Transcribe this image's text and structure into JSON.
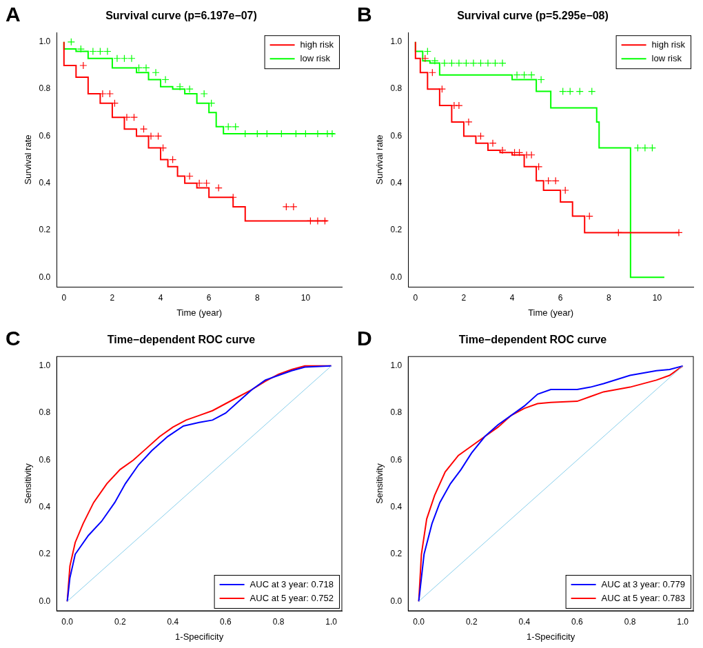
{
  "chart_data": [
    {
      "panel": "A",
      "type": "line",
      "title": "Survival curve (p=6.197e−07)",
      "x_label": "Time (year)",
      "y_label": "Survival rate",
      "xlim": [
        -0.3,
        11.5
      ],
      "xticks": [
        0,
        2,
        4,
        6,
        8,
        10
      ],
      "ylim": [
        -0.04,
        1.04
      ],
      "yticks": [
        {
          "value": 0,
          "label": "0.0"
        },
        {
          "value": 0.2,
          "label": "0.2"
        },
        {
          "value": 0.4,
          "label": "0.4"
        },
        {
          "value": 0.6,
          "label": "0.6"
        },
        {
          "value": 0.8,
          "label": "0.8"
        },
        {
          "value": 1,
          "label": "1.0"
        }
      ],
      "grid": false,
      "legend": "top right",
      "series": [
        {
          "name": "high risk",
          "color": "#ff0000",
          "line_style": "step",
          "marker": "cross",
          "x": [
            0,
            0.5,
            1,
            1.5,
            2,
            2.5,
            3,
            3.5,
            4,
            4.3,
            4.7,
            5,
            5.5,
            6,
            7,
            7.5,
            9.9,
            10.9
          ],
          "values": [
            1,
            0.9,
            0.85,
            0.78,
            0.74,
            0.68,
            0.63,
            0.6,
            0.55,
            0.5,
            0.47,
            0.43,
            0.4,
            0.38,
            0.34,
            0.3,
            0.24,
            0.24
          ],
          "censor_x": [
            0.8,
            1.6,
            1.9,
            2.1,
            2.6,
            2.9,
            3.3,
            3.6,
            3.9,
            4.1,
            4.5,
            5.2,
            5.6,
            5.9,
            6.4,
            7.0,
            9.2,
            9.5,
            10.2,
            10.5,
            10.8
          ]
        },
        {
          "name": "low risk",
          "color": "#00ff00",
          "line_style": "step",
          "marker": "cross",
          "x": [
            0,
            0.5,
            1,
            2,
            3,
            3.5,
            4,
            4.5,
            5,
            5.5,
            6,
            6.3,
            6.6,
            7.3,
            11.2
          ],
          "values": [
            1,
            0.97,
            0.96,
            0.93,
            0.89,
            0.87,
            0.84,
            0.81,
            0.8,
            0.78,
            0.74,
            0.7,
            0.64,
            0.61,
            0.61
          ],
          "censor_x": [
            0.3,
            0.7,
            1.2,
            1.5,
            1.8,
            2.2,
            2.5,
            2.8,
            3.1,
            3.4,
            3.8,
            4.2,
            4.8,
            5.2,
            5.8,
            6.1,
            6.8,
            7.1,
            7.5,
            8.0,
            8.4,
            9.0,
            9.6,
            10.0,
            10.5,
            10.9,
            11.1
          ]
        }
      ]
    },
    {
      "panel": "B",
      "type": "line",
      "title": "Survival curve (p=5.295e−08)",
      "x_label": "Time (year)",
      "y_label": "Survival rate",
      "xlim": [
        -0.3,
        11.5
      ],
      "xticks": [
        0,
        2,
        4,
        6,
        8,
        10
      ],
      "ylim": [
        -0.04,
        1.04
      ],
      "yticks": [
        {
          "value": 0,
          "label": "0.0"
        },
        {
          "value": 0.2,
          "label": "0.2"
        },
        {
          "value": 0.4,
          "label": "0.4"
        },
        {
          "value": 0.6,
          "label": "0.6"
        },
        {
          "value": 0.8,
          "label": "0.8"
        },
        {
          "value": 1,
          "label": "1.0"
        }
      ],
      "grid": false,
      "legend": "top right",
      "series": [
        {
          "name": "high risk",
          "color": "#ff0000",
          "line_style": "step",
          "marker": "cross",
          "x": [
            0,
            0.2,
            0.5,
            1,
            1.5,
            2,
            2.5,
            3,
            3.5,
            4,
            4.5,
            5,
            5.3,
            6,
            6.5,
            7,
            7.3,
            10.9
          ],
          "values": [
            1,
            0.93,
            0.87,
            0.8,
            0.73,
            0.66,
            0.6,
            0.57,
            0.54,
            0.53,
            0.52,
            0.47,
            0.41,
            0.37,
            0.32,
            0.26,
            0.19,
            0.19
          ],
          "censor_x": [
            0.4,
            0.7,
            1.1,
            1.6,
            1.8,
            2.2,
            2.7,
            3.2,
            3.6,
            4.1,
            4.3,
            4.6,
            4.8,
            5.1,
            5.5,
            5.8,
            6.2,
            7.2,
            8.4,
            10.9
          ]
        },
        {
          "name": "low risk",
          "color": "#00ff00",
          "line_style": "step",
          "marker": "cross",
          "x": [
            0,
            0.3,
            0.6,
            1,
            4,
            5,
            5.6,
            7.5,
            7.6,
            8.9,
            10.3
          ],
          "values": [
            1,
            0.96,
            0.92,
            0.91,
            0.86,
            0.84,
            0.79,
            0.72,
            0.66,
            0.55,
            0
          ],
          "censor_x": [
            0.5,
            0.8,
            1.2,
            1.5,
            1.8,
            2.1,
            2.4,
            2.7,
            3.0,
            3.3,
            3.6,
            4.2,
            4.5,
            4.8,
            5.2,
            6.1,
            6.4,
            6.8,
            7.3,
            9.2,
            9.5,
            9.8
          ]
        }
      ]
    },
    {
      "panel": "C",
      "type": "line",
      "title": "Time−dependent ROC curve",
      "x_label": "1-Specificity",
      "y_label": "Sensitivity",
      "xlim": [
        -0.04,
        1.04
      ],
      "xticks": [
        {
          "value": 0,
          "label": "0.0"
        },
        {
          "value": 0.2,
          "label": "0.2"
        },
        {
          "value": 0.4,
          "label": "0.4"
        },
        {
          "value": 0.6,
          "label": "0.6"
        },
        {
          "value": 0.8,
          "label": "0.8"
        },
        {
          "value": 1,
          "label": "1.0"
        }
      ],
      "ylim": [
        -0.04,
        1.04
      ],
      "yticks": [
        {
          "value": 0,
          "label": "0.0"
        },
        {
          "value": 0.2,
          "label": "0.2"
        },
        {
          "value": 0.4,
          "label": "0.4"
        },
        {
          "value": 0.6,
          "label": "0.6"
        },
        {
          "value": 0.8,
          "label": "0.8"
        },
        {
          "value": 1,
          "label": "1.0"
        }
      ],
      "grid": false,
      "legend": "bottom right",
      "series": [
        {
          "color": "#87ceeb",
          "line_style": "solid",
          "x": [
            0,
            1
          ],
          "values": [
            0,
            1
          ]
        },
        {
          "name": "AUC at 3 year: 0.718",
          "color": "#0000ff",
          "line_style": "solid",
          "x": [
            0,
            0.01,
            0.03,
            0.08,
            0.13,
            0.18,
            0.22,
            0.27,
            0.32,
            0.38,
            0.44,
            0.5,
            0.55,
            0.6,
            0.65,
            0.7,
            0.75,
            0.8,
            0.85,
            0.9,
            1
          ],
          "values": [
            0,
            0.1,
            0.2,
            0.28,
            0.34,
            0.42,
            0.5,
            0.58,
            0.64,
            0.7,
            0.745,
            0.76,
            0.77,
            0.8,
            0.85,
            0.9,
            0.94,
            0.96,
            0.98,
            0.995,
            1
          ]
        },
        {
          "name": "AUC at 5 year: 0.752",
          "color": "#ff0000",
          "line_style": "solid",
          "x": [
            0,
            0.01,
            0.03,
            0.06,
            0.1,
            0.15,
            0.2,
            0.25,
            0.3,
            0.35,
            0.4,
            0.45,
            0.5,
            0.55,
            0.6,
            0.65,
            0.7,
            0.75,
            0.8,
            0.85,
            0.9,
            1
          ],
          "values": [
            0,
            0.15,
            0.25,
            0.33,
            0.42,
            0.5,
            0.56,
            0.6,
            0.65,
            0.7,
            0.74,
            0.77,
            0.79,
            0.81,
            0.84,
            0.87,
            0.9,
            0.935,
            0.965,
            0.985,
            1,
            1
          ]
        }
      ]
    },
    {
      "panel": "D",
      "type": "line",
      "title": "Time−dependent ROC curve",
      "x_label": "1-Specificity",
      "y_label": "Sensitivity",
      "xlim": [
        -0.04,
        1.04
      ],
      "xticks": [
        {
          "value": 0,
          "label": "0.0"
        },
        {
          "value": 0.2,
          "label": "0.2"
        },
        {
          "value": 0.4,
          "label": "0.4"
        },
        {
          "value": 0.6,
          "label": "0.6"
        },
        {
          "value": 0.8,
          "label": "0.8"
        },
        {
          "value": 1,
          "label": "1.0"
        }
      ],
      "ylim": [
        -0.04,
        1.04
      ],
      "yticks": [
        {
          "value": 0,
          "label": "0.0"
        },
        {
          "value": 0.2,
          "label": "0.2"
        },
        {
          "value": 0.4,
          "label": "0.4"
        },
        {
          "value": 0.6,
          "label": "0.6"
        },
        {
          "value": 0.8,
          "label": "0.8"
        },
        {
          "value": 1,
          "label": "1.0"
        }
      ],
      "grid": false,
      "legend": "bottom right",
      "series": [
        {
          "color": "#87ceeb",
          "line_style": "solid",
          "x": [
            0,
            1
          ],
          "values": [
            0,
            1
          ]
        },
        {
          "name": "AUC at 3 year: 0.779",
          "color": "#0000ff",
          "line_style": "solid",
          "x": [
            0,
            0.02,
            0.05,
            0.08,
            0.12,
            0.16,
            0.2,
            0.25,
            0.3,
            0.35,
            0.4,
            0.45,
            0.5,
            0.6,
            0.65,
            0.7,
            0.8,
            0.9,
            0.95,
            1
          ],
          "values": [
            0,
            0.2,
            0.33,
            0.42,
            0.5,
            0.56,
            0.63,
            0.7,
            0.75,
            0.79,
            0.83,
            0.88,
            0.9,
            0.9,
            0.91,
            0.925,
            0.96,
            0.98,
            0.985,
            1
          ]
        },
        {
          "name": "AUC at 5 year: 0.783",
          "color": "#ff0000",
          "line_style": "solid",
          "x": [
            0,
            0.01,
            0.03,
            0.06,
            0.1,
            0.15,
            0.2,
            0.25,
            0.3,
            0.35,
            0.4,
            0.45,
            0.5,
            0.6,
            0.65,
            0.7,
            0.8,
            0.9,
            0.95,
            1
          ],
          "values": [
            0,
            0.2,
            0.35,
            0.45,
            0.55,
            0.62,
            0.66,
            0.7,
            0.74,
            0.79,
            0.82,
            0.84,
            0.845,
            0.85,
            0.87,
            0.89,
            0.91,
            0.94,
            0.96,
            1
          ]
        }
      ]
    }
  ]
}
